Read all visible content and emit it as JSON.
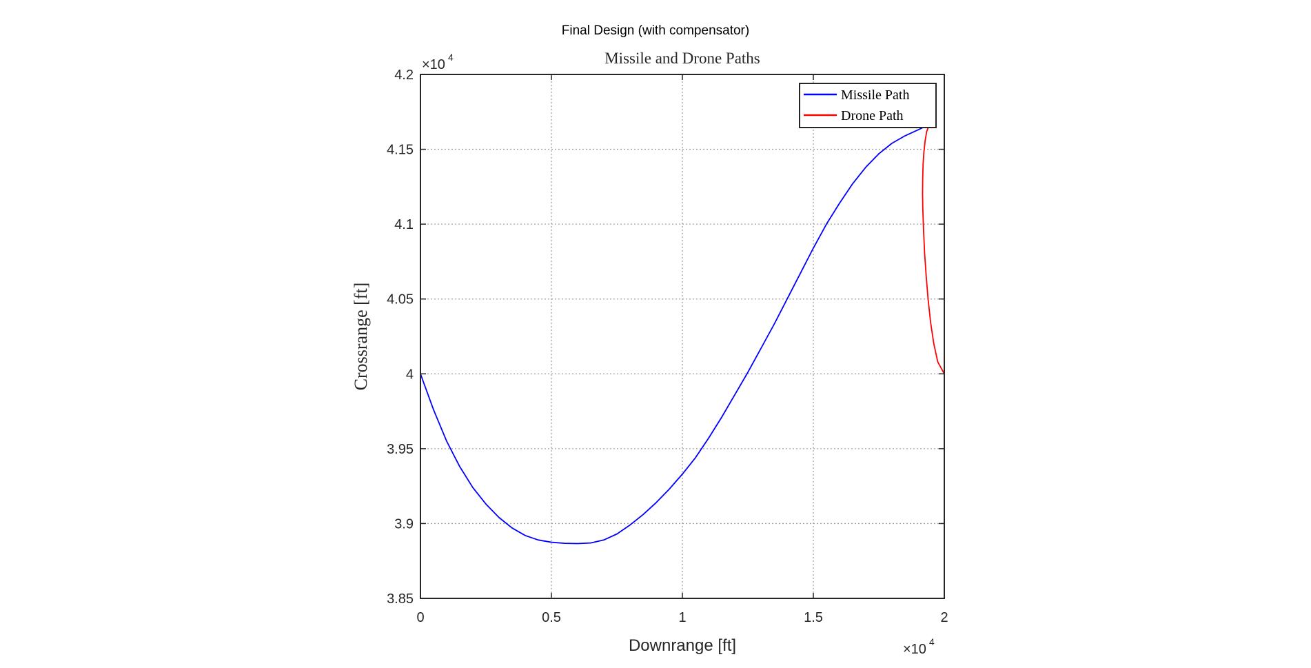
{
  "figure": {
    "suptitle": "Final Design (with compensator)"
  },
  "chart_data": {
    "type": "line",
    "title": "Missile and Drone Paths",
    "xlabel": "Downrange [ft]",
    "ylabel": "Crossrange [ft]",
    "xlim": [
      0,
      20000
    ],
    "ylim": [
      38500,
      42000
    ],
    "x_ticks": [
      0,
      5000,
      10000,
      15000,
      20000
    ],
    "x_tick_labels": [
      "0",
      "0.5",
      "1",
      "1.5",
      "2"
    ],
    "y_ticks": [
      38500,
      39000,
      39500,
      40000,
      40500,
      41000,
      41500,
      42000
    ],
    "y_tick_labels": [
      "3.85",
      "3.9",
      "3.95",
      "4",
      "4.05",
      "4.1",
      "4.15",
      "4.2"
    ],
    "x_exponent": {
      "base": "×10",
      "power": "4"
    },
    "y_exponent": {
      "base": "×10",
      "power": "4"
    },
    "grid": true,
    "legend_position": "top-right",
    "series": [
      {
        "name": "Missile Path",
        "color": "#0000ff",
        "x": [
          0,
          500,
          1000,
          1500,
          2000,
          2500,
          3000,
          3500,
          4000,
          4500,
          5000,
          5500,
          6000,
          6500,
          7000,
          7500,
          8000,
          8500,
          9000,
          9500,
          10000,
          10500,
          11000,
          11500,
          12000,
          12500,
          13000,
          13500,
          14000,
          14500,
          15000,
          15500,
          16000,
          16500,
          17000,
          17500,
          18000,
          18500,
          19000,
          19300,
          19430
        ],
        "y": [
          40000,
          39760,
          39550,
          39380,
          39240,
          39130,
          39040,
          38970,
          38920,
          38890,
          38875,
          38868,
          38866,
          38870,
          38890,
          38930,
          38990,
          39060,
          39140,
          39230,
          39330,
          39440,
          39570,
          39710,
          39860,
          40010,
          40170,
          40330,
          40500,
          40670,
          40840,
          41000,
          41140,
          41270,
          41380,
          41470,
          41540,
          41590,
          41630,
          41655,
          41665
        ]
      },
      {
        "name": "Drone Path",
        "color": "#ff0000",
        "x": [
          20000,
          19750,
          19600,
          19480,
          19380,
          19310,
          19250,
          19210,
          19180,
          19170,
          19175,
          19190,
          19220,
          19270,
          19330,
          19430
        ],
        "y": [
          40000,
          40080,
          40200,
          40340,
          40500,
          40650,
          40800,
          40950,
          41100,
          41200,
          41300,
          41400,
          41480,
          41560,
          41620,
          41665
        ]
      }
    ]
  }
}
